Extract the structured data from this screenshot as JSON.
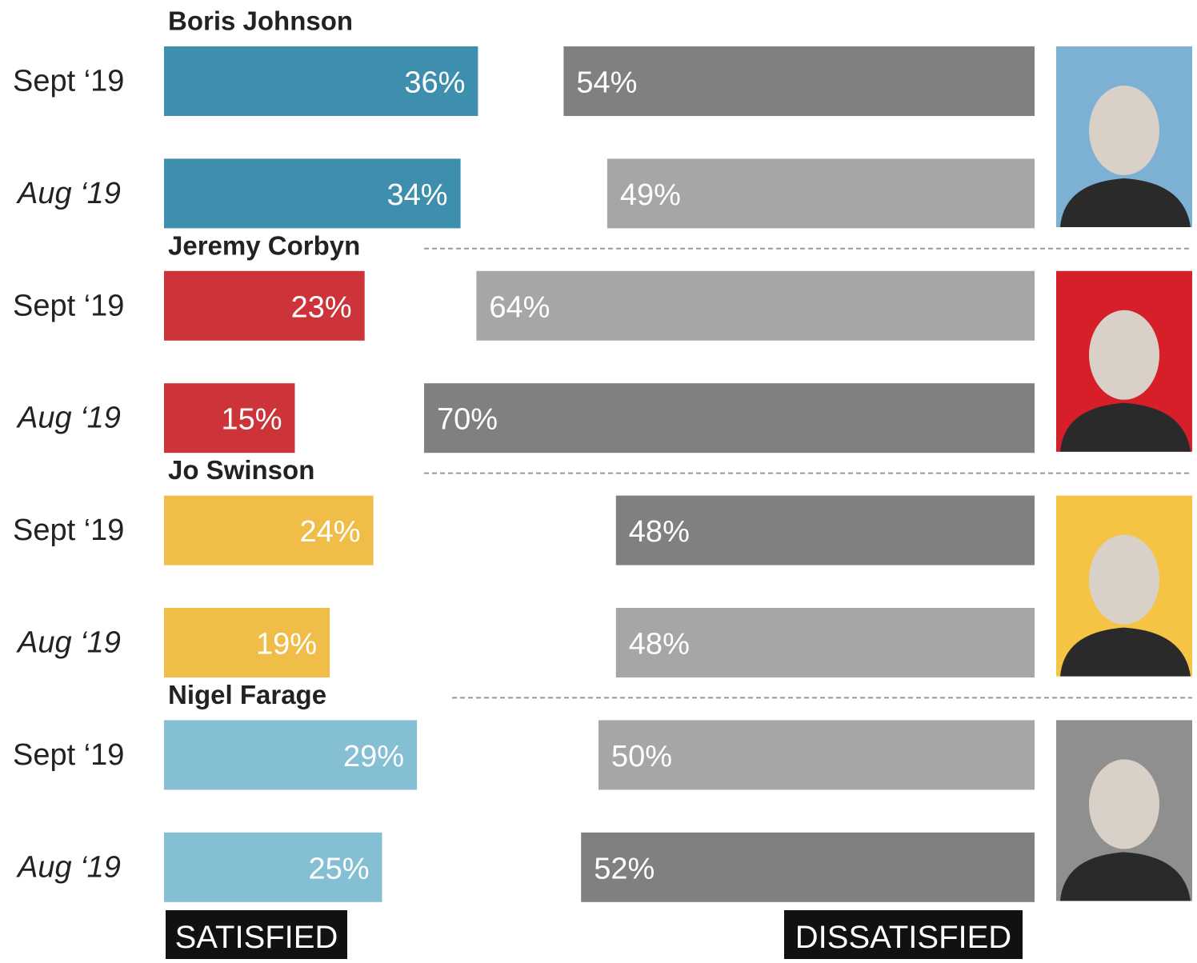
{
  "chart_data": {
    "type": "bar",
    "xlim": [
      0,
      100
    ],
    "legend": [
      "SATISFIED",
      "DISSATISFIED"
    ],
    "groups": [
      {
        "name": "Boris Johnson",
        "color": "#3e8fae",
        "photo_color": "#7db1d4",
        "periods": [
          "Sept ‘19",
          "Aug ‘19"
        ],
        "satisfied": [
          36,
          34
        ],
        "satisfied_labels": [
          "36%",
          "34%"
        ],
        "dissatisfied": [
          54,
          49
        ],
        "dissatisfied_labels": [
          "54%",
          "49%"
        ],
        "dissatisfied_colors": [
          "#808080",
          "#a6a6a6"
        ]
      },
      {
        "name": "Jeremy Corbyn",
        "color": "#cc343a",
        "photo_color": "#d71f2a",
        "periods": [
          "Sept ‘19",
          "Aug ‘19"
        ],
        "satisfied": [
          23,
          15
        ],
        "satisfied_labels": [
          "23%",
          "15%"
        ],
        "dissatisfied": [
          64,
          70
        ],
        "dissatisfied_labels": [
          "64%",
          "70%"
        ],
        "dissatisfied_colors": [
          "#a6a6a6",
          "#808080"
        ]
      },
      {
        "name": "Jo Swinson",
        "color": "#f0be48",
        "photo_color": "#f5c445",
        "periods": [
          "Sept ‘19",
          "Aug ‘19"
        ],
        "satisfied": [
          24,
          19
        ],
        "satisfied_labels": [
          "24%",
          "19%"
        ],
        "dissatisfied": [
          48,
          48
        ],
        "dissatisfied_labels": [
          "48%",
          "48%"
        ],
        "dissatisfied_colors": [
          "#808080",
          "#a6a6a6"
        ]
      },
      {
        "name": "Nigel Farage",
        "color": "#84bfd4",
        "photo_color": "#8f8f8f",
        "periods": [
          "Sept ‘19",
          "Aug ‘19"
        ],
        "satisfied": [
          29,
          25
        ],
        "satisfied_labels": [
          "29%",
          "25%"
        ],
        "dissatisfied": [
          50,
          52
        ],
        "dissatisfied_labels": [
          "50%",
          "52%"
        ],
        "dissatisfied_colors": [
          "#a6a6a6",
          "#808080"
        ]
      }
    ]
  }
}
